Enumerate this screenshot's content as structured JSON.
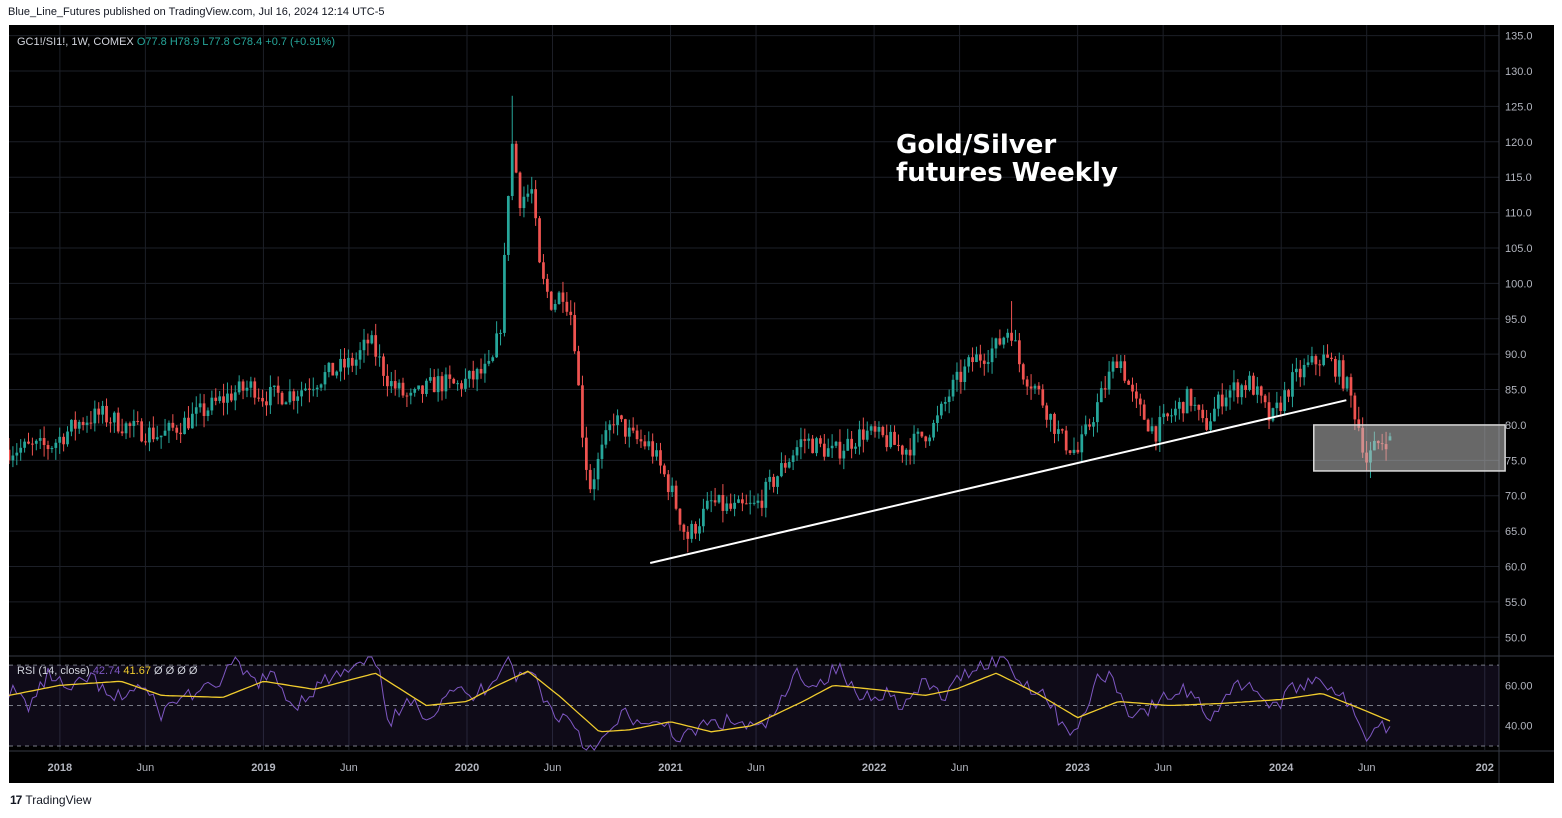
{
  "publisher_line": "Blue_Line_Futures published on TradingView.com, Jul 16, 2024 12:14 UTC-5",
  "footer": {
    "logo": "17",
    "brand": "TradingView"
  },
  "chart_data": {
    "type": "candlestick",
    "symbol_info": "GC1!/SI1!, 1W, COMEX",
    "ohlc": {
      "open": "O77.8",
      "high": "H78.9",
      "low": "L77.8",
      "close": "C78.4",
      "change": "+0.7 (+0.91%)"
    },
    "title": "Gold/Silver\nfutures Weekly",
    "ylim": [
      47.5,
      136.5
    ],
    "y_ticks": [
      "135.0",
      "130.0",
      "125.0",
      "120.0",
      "115.0",
      "110.0",
      "105.0",
      "100.0",
      "95.0",
      "90.0",
      "85.0",
      "80.0",
      "75.0",
      "70.0",
      "65.0",
      "60.0",
      "55.0",
      "50.0"
    ],
    "x_ticks": [
      "2018",
      "Jun",
      "2019",
      "Jun",
      "2020",
      "Jun",
      "2021",
      "Jun",
      "2022",
      "Jun",
      "2023",
      "Jun",
      "2024",
      "Jun",
      "202"
    ],
    "x_tick_dates": [
      2018.0,
      2018.42,
      2019.0,
      2019.42,
      2020.0,
      2020.42,
      2021.0,
      2021.42,
      2022.0,
      2022.42,
      2023.0,
      2023.42,
      2024.0,
      2024.42,
      2025.0
    ],
    "x_range": [
      2017.75,
      2025.07
    ],
    "colors": {
      "up": "#26a69a",
      "down": "#ef5350",
      "rsi": "#7e57c2",
      "rsi_ma": "#f0cc2e",
      "annotation": "#ffffff",
      "background": "#000000"
    },
    "price_path": [
      [
        2017.75,
        76.5
      ],
      [
        2017.95,
        77.0
      ],
      [
        2018.1,
        80.5
      ],
      [
        2018.2,
        81.5
      ],
      [
        2018.35,
        79.5
      ],
      [
        2018.5,
        78.5
      ],
      [
        2018.65,
        81.0
      ],
      [
        2018.85,
        84.5
      ],
      [
        2018.95,
        85.5
      ],
      [
        2019.0,
        84.0
      ],
      [
        2019.15,
        84.5
      ],
      [
        2019.3,
        87.0
      ],
      [
        2019.45,
        89.0
      ],
      [
        2019.52,
        92.0
      ],
      [
        2019.62,
        86.0
      ],
      [
        2019.72,
        83.5
      ],
      [
        2019.85,
        86.0
      ],
      [
        2019.95,
        85.5
      ],
      [
        2020.05,
        87.0
      ],
      [
        2020.12,
        88.0
      ],
      [
        2020.17,
        95.0
      ],
      [
        2020.2,
        112.0
      ],
      [
        2020.22,
        120.0
      ],
      [
        2020.26,
        112.0
      ],
      [
        2020.32,
        113.0
      ],
      [
        2020.36,
        101.0
      ],
      [
        2020.42,
        97.0
      ],
      [
        2020.47,
        99.0
      ],
      [
        2020.52,
        95.0
      ],
      [
        2020.56,
        81.0
      ],
      [
        2020.6,
        71.0
      ],
      [
        2020.66,
        76.0
      ],
      [
        2020.72,
        81.0
      ],
      [
        2020.82,
        78.0
      ],
      [
        2020.9,
        77.0
      ],
      [
        2021.0,
        71.0
      ],
      [
        2021.08,
        64.0
      ],
      [
        2021.2,
        69.0
      ],
      [
        2021.3,
        68.0
      ],
      [
        2021.42,
        68.5
      ],
      [
        2021.55,
        74.0
      ],
      [
        2021.65,
        78.0
      ],
      [
        2021.8,
        76.0
      ],
      [
        2021.95,
        79.0
      ],
      [
        2022.05,
        78.0
      ],
      [
        2022.15,
        76.5
      ],
      [
        2022.3,
        80.0
      ],
      [
        2022.38,
        85.0
      ],
      [
        2022.48,
        89.0
      ],
      [
        2022.6,
        91.0
      ],
      [
        2022.67,
        94.0
      ],
      [
        2022.72,
        88.0
      ],
      [
        2022.8,
        85.0
      ],
      [
        2022.92,
        78.0
      ],
      [
        2023.0,
        76.0
      ],
      [
        2023.1,
        83.0
      ],
      [
        2023.2,
        90.0
      ],
      [
        2023.28,
        83.0
      ],
      [
        2023.38,
        79.0
      ],
      [
        2023.48,
        82.0
      ],
      [
        2023.55,
        84.0
      ],
      [
        2023.62,
        79.5
      ],
      [
        2023.72,
        84.5
      ],
      [
        2023.85,
        86.0
      ],
      [
        2023.95,
        80.5
      ],
      [
        2024.05,
        86.0
      ],
      [
        2024.12,
        88.0
      ],
      [
        2024.2,
        89.5
      ],
      [
        2024.28,
        88.0
      ],
      [
        2024.33,
        85.0
      ],
      [
        2024.38,
        80.0
      ],
      [
        2024.42,
        75.0
      ],
      [
        2024.48,
        77.5
      ],
      [
        2024.54,
        78.4
      ]
    ],
    "extremes": [
      {
        "x": 2020.22,
        "type": "high",
        "value": 126.5
      },
      {
        "x": 2021.08,
        "type": "low",
        "value": 62.0
      },
      {
        "x": 2022.67,
        "type": "high",
        "value": 97.5
      },
      {
        "x": 2024.44,
        "type": "low",
        "value": 72.5
      }
    ],
    "annotations": {
      "trendline": {
        "from": [
          2020.9,
          60.5
        ],
        "to": [
          2024.32,
          83.5
        ]
      },
      "box": {
        "x": [
          2024.16,
          2025.1
        ],
        "y": [
          73.5,
          80.0
        ]
      }
    },
    "rsi": {
      "label": "RSI (14, close)",
      "value1": "42.74",
      "value2": "41.67",
      "extra": "Ø  Ø  Ø  Ø",
      "levels": [
        70,
        50,
        30
      ],
      "ylim": [
        28,
        74
      ],
      "ticks": [
        "60.00",
        "40.00"
      ],
      "tick_values": [
        60,
        40
      ],
      "ma_path": [
        [
          2017.75,
          55
        ],
        [
          2018.0,
          60
        ],
        [
          2018.3,
          62
        ],
        [
          2018.5,
          55
        ],
        [
          2018.8,
          54
        ],
        [
          2019.0,
          62
        ],
        [
          2019.25,
          58
        ],
        [
          2019.55,
          66
        ],
        [
          2019.8,
          50
        ],
        [
          2020.0,
          52
        ],
        [
          2020.15,
          60
        ],
        [
          2020.3,
          67
        ],
        [
          2020.45,
          55
        ],
        [
          2020.65,
          37
        ],
        [
          2020.8,
          38
        ],
        [
          2021.0,
          42
        ],
        [
          2021.2,
          37
        ],
        [
          2021.4,
          40
        ],
        [
          2021.65,
          52
        ],
        [
          2021.8,
          60
        ],
        [
          2022.0,
          58
        ],
        [
          2022.25,
          55
        ],
        [
          2022.4,
          58
        ],
        [
          2022.6,
          66
        ],
        [
          2022.8,
          56
        ],
        [
          2023.0,
          44
        ],
        [
          2023.2,
          52
        ],
        [
          2023.45,
          50
        ],
        [
          2023.7,
          51
        ],
        [
          2024.0,
          53
        ],
        [
          2024.2,
          56
        ],
        [
          2024.4,
          48
        ],
        [
          2024.55,
          41.67
        ]
      ],
      "line_path": [
        [
          2017.75,
          58
        ],
        [
          2017.85,
          50
        ],
        [
          2017.95,
          66
        ],
        [
          2018.05,
          56
        ],
        [
          2018.15,
          65
        ],
        [
          2018.25,
          52
        ],
        [
          2018.4,
          60
        ],
        [
          2018.5,
          46
        ],
        [
          2018.6,
          55
        ],
        [
          2018.75,
          58
        ],
        [
          2018.85,
          71
        ],
        [
          2018.95,
          62
        ],
        [
          2019.05,
          64
        ],
        [
          2019.15,
          50
        ],
        [
          2019.3,
          62
        ],
        [
          2019.45,
          68
        ],
        [
          2019.55,
          73
        ],
        [
          2019.62,
          42
        ],
        [
          2019.72,
          51
        ],
        [
          2019.82,
          45
        ],
        [
          2019.92,
          60
        ],
        [
          2020.02,
          53
        ],
        [
          2020.12,
          62
        ],
        [
          2020.2,
          75
        ],
        [
          2020.25,
          63
        ],
        [
          2020.32,
          67
        ],
        [
          2020.42,
          46
        ],
        [
          2020.52,
          43
        ],
        [
          2020.58,
          29
        ],
        [
          2020.68,
          33
        ],
        [
          2020.78,
          47
        ],
        [
          2020.88,
          38
        ],
        [
          2020.98,
          42
        ],
        [
          2021.05,
          32
        ],
        [
          2021.15,
          40
        ],
        [
          2021.3,
          42
        ],
        [
          2021.45,
          38
        ],
        [
          2021.55,
          52
        ],
        [
          2021.62,
          66
        ],
        [
          2021.72,
          60
        ],
        [
          2021.82,
          69
        ],
        [
          2021.92,
          54
        ],
        [
          2022.05,
          57
        ],
        [
          2022.15,
          50
        ],
        [
          2022.25,
          61
        ],
        [
          2022.35,
          54
        ],
        [
          2022.45,
          67
        ],
        [
          2022.55,
          71
        ],
        [
          2022.65,
          74
        ],
        [
          2022.72,
          61
        ],
        [
          2022.82,
          58
        ],
        [
          2022.92,
          42
        ],
        [
          2023.0,
          36
        ],
        [
          2023.08,
          60
        ],
        [
          2023.15,
          67
        ],
        [
          2023.25,
          47
        ],
        [
          2023.35,
          48
        ],
        [
          2023.45,
          55
        ],
        [
          2023.55,
          58
        ],
        [
          2023.65,
          44
        ],
        [
          2023.75,
          58
        ],
        [
          2023.85,
          62
        ],
        [
          2023.95,
          48
        ],
        [
          2024.05,
          57
        ],
        [
          2024.15,
          64
        ],
        [
          2024.25,
          60
        ],
        [
          2024.32,
          52
        ],
        [
          2024.38,
          40
        ],
        [
          2024.42,
          35
        ],
        [
          2024.48,
          43
        ],
        [
          2024.52,
          37
        ],
        [
          2024.55,
          42.74
        ]
      ]
    }
  }
}
